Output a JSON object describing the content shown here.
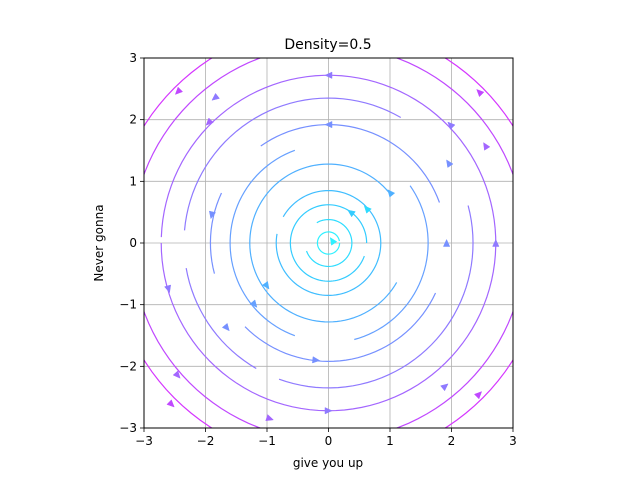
{
  "chart_data": {
    "type": "streamplot",
    "title": "Density=0.5",
    "xlabel": "give you up",
    "ylabel": "Never gonna",
    "xlim": [
      -3,
      3
    ],
    "ylim": [
      -3,
      3
    ],
    "xticks": [
      -3,
      -2,
      -1,
      0,
      1,
      2,
      3
    ],
    "yticks": [
      -3,
      -2,
      -1,
      0,
      1,
      2,
      3
    ],
    "xtick_labels": [
      "−3",
      "−2",
      "−1",
      "0",
      "1",
      "2",
      "3"
    ],
    "ytick_labels": [
      "−3",
      "−2",
      "−1",
      "0",
      "1",
      "2",
      "3"
    ],
    "grid": true,
    "aspect": "equal",
    "field": {
      "u": "-y",
      "v": "x",
      "rotation": "counterclockwise",
      "center": [
        0,
        0
      ]
    },
    "colormap": "cool",
    "color_by": "speed",
    "streamlines": [
      {
        "radius": 0.18,
        "start_deg": 10,
        "end_deg": 360,
        "color": "#2ff0ff"
      },
      {
        "radius": 0.38,
        "start_deg": 200,
        "end_deg": 480,
        "color": "#2ddcff"
      },
      {
        "radius": 0.62,
        "start_deg": 0,
        "end_deg": 340,
        "color": "#33ccff"
      },
      {
        "radius": 0.85,
        "start_deg": 170,
        "end_deg": 510,
        "color": "#3fbdff"
      },
      {
        "radius": 1.28,
        "start_deg": 40,
        "end_deg": 330,
        "color": "#4fb0ff"
      },
      {
        "radius": 1.6,
        "start_deg": 110,
        "end_deg": 250,
        "color": "#66a0ff"
      },
      {
        "radius": 1.62,
        "start_deg": 285,
        "end_deg": 395,
        "color": "#66a0ff"
      },
      {
        "radius": 1.92,
        "start_deg": 20,
        "end_deg": 125,
        "color": "#7690ff"
      },
      {
        "radius": 1.92,
        "start_deg": 155,
        "end_deg": 195,
        "color": "#7690ff"
      },
      {
        "radius": 1.92,
        "start_deg": 225,
        "end_deg": 335,
        "color": "#7690ff"
      },
      {
        "radius": 2.35,
        "start_deg": 60,
        "end_deg": 175,
        "color": "#8f7aff"
      },
      {
        "radius": 2.35,
        "start_deg": 190,
        "end_deg": 240,
        "color": "#8f7aff"
      },
      {
        "radius": 2.35,
        "start_deg": 250,
        "end_deg": 375,
        "color": "#8f7aff"
      },
      {
        "radius": 2.72,
        "start_deg": 5,
        "end_deg": 178,
        "color": "#a366ff"
      },
      {
        "radius": 2.72,
        "start_deg": 180,
        "end_deg": 365,
        "color": "#a366ff"
      },
      {
        "radius": 3.2,
        "start_deg": 0,
        "end_deg": 360,
        "color": "#c048ff"
      },
      {
        "radius": 3.55,
        "start_deg": 0,
        "end_deg": 360,
        "color": "#d535ff"
      }
    ],
    "arrows": [
      {
        "x": 0.62,
        "y": 0.56,
        "color": "#2ddcff"
      },
      {
        "x": 0.36,
        "y": 0.5,
        "color": "#33ccff"
      },
      {
        "x": 0.06,
        "y": 0.04,
        "color": "#2ff0ff"
      },
      {
        "x": 1.0,
        "y": 0.82,
        "color": "#4fb0ff"
      },
      {
        "x": -1.0,
        "y": -0.7,
        "color": "#4fb0ff"
      },
      {
        "x": -1.2,
        "y": -1.0,
        "color": "#66a0ff"
      },
      {
        "x": 0.0,
        "y": 1.92,
        "color": "#7690ff"
      },
      {
        "x": -1.9,
        "y": 0.45,
        "color": "#7690ff"
      },
      {
        "x": -0.2,
        "y": -1.9,
        "color": "#7690ff"
      },
      {
        "x": -1.65,
        "y": -1.38,
        "color": "#7690ff"
      },
      {
        "x": 1.92,
        "y": 0.0,
        "color": "#7690ff"
      },
      {
        "x": 1.95,
        "y": 1.3,
        "color": "#7690ff"
      },
      {
        "x": 0.0,
        "y": 2.72,
        "color": "#8f7aff"
      },
      {
        "x": -1.85,
        "y": 2.35,
        "color": "#8f7aff"
      },
      {
        "x": -2.6,
        "y": -0.75,
        "color": "#8f7aff"
      },
      {
        "x": 0.0,
        "y": -2.72,
        "color": "#8f7aff"
      },
      {
        "x": 2.72,
        "y": 0.0,
        "color": "#8f7aff"
      },
      {
        "x": 1.98,
        "y": 1.92,
        "color": "#8f7aff"
      },
      {
        "x": 1.9,
        "y": -2.32,
        "color": "#8f7aff"
      },
      {
        "x": -1.95,
        "y": 1.95,
        "color": "#a366ff"
      },
      {
        "x": -2.45,
        "y": -2.15,
        "color": "#a366ff"
      },
      {
        "x": -0.95,
        "y": -2.85,
        "color": "#a366ff"
      },
      {
        "x": 2.55,
        "y": 1.58,
        "color": "#a366ff"
      },
      {
        "x": -2.45,
        "y": 2.45,
        "color": "#c048ff"
      },
      {
        "x": 2.45,
        "y": 2.45,
        "color": "#c048ff"
      },
      {
        "x": -2.55,
        "y": -2.62,
        "color": "#c048ff"
      },
      {
        "x": 2.45,
        "y": -2.45,
        "color": "#c048ff"
      }
    ]
  }
}
